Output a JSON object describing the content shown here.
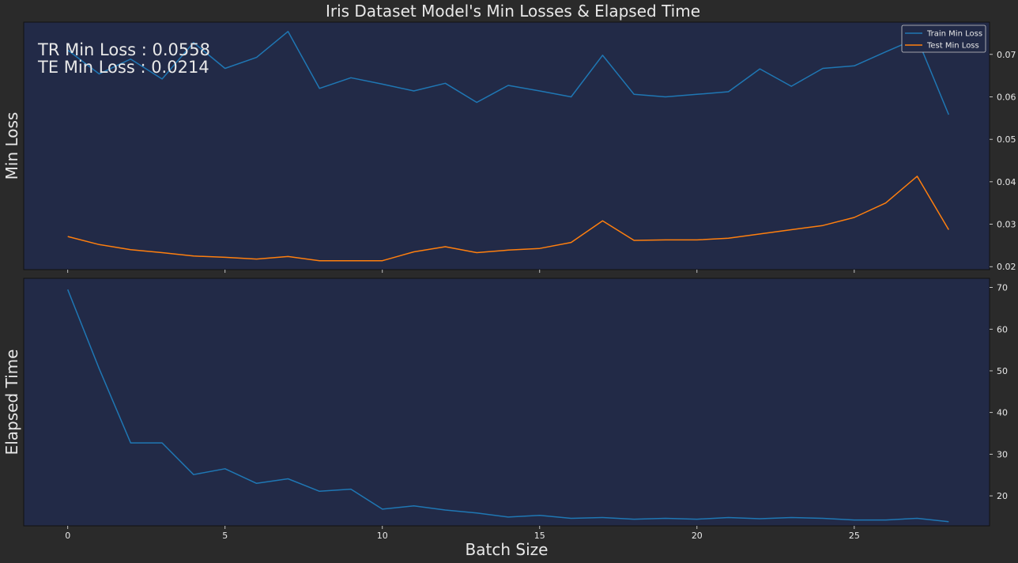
{
  "title": "Iris Dataset Model's Min Losses & Elapsed Time",
  "colors": {
    "background": "#2a2a2a",
    "axes_bg": "#222a47",
    "train": "#1f77b4",
    "test": "#ff7f0e",
    "text": "#e8e8e8"
  },
  "annotations": {
    "tr": "TR Min Loss : 0.0558",
    "te": "TE Min Loss : 0.0214"
  },
  "chart_data": [
    {
      "type": "line",
      "ylabel": "Min Loss",
      "xlabel": "",
      "xlim": [
        -1.4,
        29.3
      ],
      "ylim": [
        0.0193,
        0.0776
      ],
      "x_ticks": [
        0,
        5,
        10,
        15,
        20,
        25
      ],
      "y_ticks": [
        0.02,
        0.03,
        0.04,
        0.05,
        0.06,
        0.07
      ],
      "y_tick_labels": [
        "0.02",
        "0.03",
        "0.04",
        "0.05",
        "0.06",
        "0.07"
      ],
      "y_axis_side": "right",
      "legend_position": "top-right",
      "x": [
        0,
        1,
        2,
        3,
        4,
        5,
        6,
        7,
        8,
        9,
        10,
        11,
        12,
        13,
        14,
        15,
        16,
        17,
        18,
        19,
        20,
        21,
        22,
        23,
        24,
        25,
        26,
        27,
        28
      ],
      "series": [
        {
          "name": "Train Min Loss",
          "color": "#1f77b4",
          "values": [
            0.071,
            0.0654,
            0.0689,
            0.0642,
            0.0728,
            0.0667,
            0.0693,
            0.0754,
            0.062,
            0.0645,
            0.063,
            0.0614,
            0.0632,
            0.0587,
            0.0627,
            0.0614,
            0.06,
            0.0698,
            0.0606,
            0.06,
            0.0606,
            0.0612,
            0.0666,
            0.0625,
            0.0667,
            0.0673,
            0.0706,
            0.0738,
            0.0558
          ]
        },
        {
          "name": "Test Min Loss",
          "color": "#ff7f0e",
          "values": [
            0.0271,
            0.0252,
            0.024,
            0.0233,
            0.0225,
            0.0222,
            0.0218,
            0.0224,
            0.0214,
            0.0214,
            0.0214,
            0.0235,
            0.0247,
            0.0233,
            0.0239,
            0.0243,
            0.0257,
            0.0308,
            0.0262,
            0.0263,
            0.0263,
            0.0267,
            0.0277,
            0.0287,
            0.0297,
            0.0316,
            0.035,
            0.0413,
            0.0287
          ]
        }
      ]
    },
    {
      "type": "line",
      "ylabel": "Elapsed Time",
      "xlabel": "Batch Size",
      "xlim": [
        -1.4,
        29.3
      ],
      "ylim": [
        12.8,
        72.2
      ],
      "x_ticks": [
        0,
        5,
        10,
        15,
        20,
        25
      ],
      "y_ticks": [
        20,
        30,
        40,
        50,
        60,
        70
      ],
      "y_tick_labels": [
        "20",
        "30",
        "40",
        "50",
        "60",
        "70"
      ],
      "y_axis_side": "right",
      "x": [
        0,
        1,
        2,
        3,
        4,
        5,
        6,
        7,
        8,
        9,
        10,
        11,
        12,
        13,
        14,
        15,
        16,
        17,
        18,
        19,
        20,
        21,
        22,
        23,
        24,
        25,
        26,
        27,
        28
      ],
      "series": [
        {
          "color": "#1f77b4",
          "values": [
            69.5,
            50.5,
            32.7,
            32.7,
            25.1,
            26.5,
            23.0,
            24.1,
            21.1,
            21.6,
            16.8,
            17.6,
            16.6,
            15.9,
            14.9,
            15.3,
            14.6,
            14.8,
            14.4,
            14.6,
            14.4,
            14.8,
            14.5,
            14.8,
            14.6,
            14.2,
            14.2,
            14.6,
            13.8
          ]
        }
      ]
    }
  ]
}
